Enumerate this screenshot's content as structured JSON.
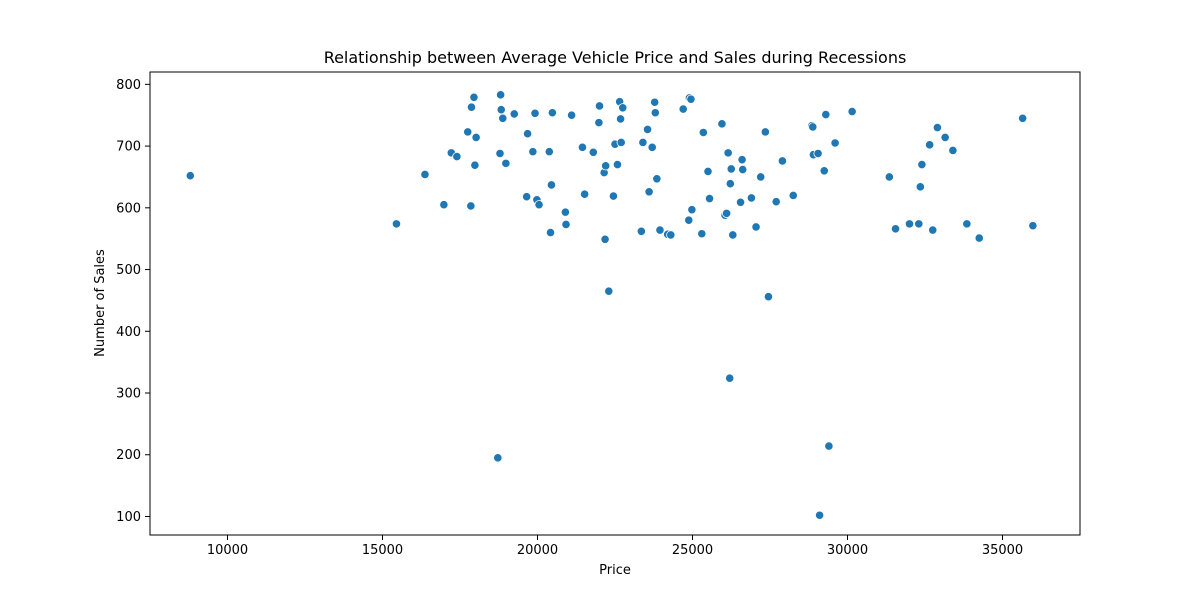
{
  "chart_data": {
    "type": "scatter",
    "title": "Relationship between Average Vehicle Price and Sales during Recessions",
    "xlabel": "Price",
    "ylabel": "Number of Sales",
    "xlim": [
      7500,
      37500
    ],
    "ylim": [
      70,
      820
    ],
    "xticks": [
      10000,
      15000,
      20000,
      25000,
      30000,
      35000
    ],
    "yticks": [
      100,
      200,
      300,
      400,
      500,
      600,
      700,
      800
    ],
    "grid": false,
    "legend": "none",
    "marker_color": "#1f77b4",
    "points": [
      [
        8800,
        652
      ],
      [
        15450,
        574
      ],
      [
        16370,
        654
      ],
      [
        16980,
        605
      ],
      [
        17220,
        689
      ],
      [
        17400,
        683
      ],
      [
        17750,
        723
      ],
      [
        17850,
        603
      ],
      [
        17870,
        763
      ],
      [
        17950,
        779
      ],
      [
        17980,
        669
      ],
      [
        18020,
        714
      ],
      [
        18720,
        195
      ],
      [
        18790,
        688
      ],
      [
        18810,
        783
      ],
      [
        18830,
        759
      ],
      [
        18880,
        745
      ],
      [
        18980,
        672
      ],
      [
        19250,
        752
      ],
      [
        19650,
        618
      ],
      [
        19680,
        720
      ],
      [
        19850,
        691
      ],
      [
        19920,
        753
      ],
      [
        19980,
        613
      ],
      [
        20050,
        605
      ],
      [
        20380,
        691
      ],
      [
        20420,
        560
      ],
      [
        20450,
        637
      ],
      [
        20480,
        754
      ],
      [
        20900,
        593
      ],
      [
        20920,
        573
      ],
      [
        21100,
        750
      ],
      [
        21450,
        698
      ],
      [
        21520,
        622
      ],
      [
        21800,
        690
      ],
      [
        21980,
        738
      ],
      [
        22000,
        765
      ],
      [
        22150,
        657
      ],
      [
        22180,
        549
      ],
      [
        22200,
        668
      ],
      [
        22300,
        465
      ],
      [
        22450,
        619
      ],
      [
        22500,
        703
      ],
      [
        22580,
        670
      ],
      [
        22650,
        772
      ],
      [
        22680,
        744
      ],
      [
        22700,
        706
      ],
      [
        22750,
        762
      ],
      [
        23350,
        562
      ],
      [
        23400,
        706
      ],
      [
        23550,
        727
      ],
      [
        23600,
        626
      ],
      [
        23700,
        698
      ],
      [
        23780,
        771
      ],
      [
        23800,
        754
      ],
      [
        23850,
        647
      ],
      [
        23950,
        564
      ],
      [
        24200,
        557
      ],
      [
        24300,
        556
      ],
      [
        24700,
        760
      ],
      [
        24880,
        580
      ],
      [
        24900,
        778
      ],
      [
        24950,
        776
      ],
      [
        24980,
        597
      ],
      [
        25300,
        558
      ],
      [
        25350,
        722
      ],
      [
        25500,
        659
      ],
      [
        25550,
        615
      ],
      [
        25950,
        736
      ],
      [
        26050,
        588
      ],
      [
        26100,
        591
      ],
      [
        26150,
        689
      ],
      [
        26200,
        324
      ],
      [
        26220,
        639
      ],
      [
        26250,
        663
      ],
      [
        26300,
        556
      ],
      [
        26550,
        609
      ],
      [
        26600,
        678
      ],
      [
        26620,
        662
      ],
      [
        26900,
        616
      ],
      [
        27050,
        569
      ],
      [
        27200,
        650
      ],
      [
        27350,
        723
      ],
      [
        27450,
        456
      ],
      [
        27700,
        610
      ],
      [
        27900,
        676
      ],
      [
        28250,
        620
      ],
      [
        28850,
        733
      ],
      [
        28880,
        731
      ],
      [
        28900,
        686
      ],
      [
        29050,
        688
      ],
      [
        29100,
        102
      ],
      [
        29250,
        660
      ],
      [
        29300,
        751
      ],
      [
        29400,
        214
      ],
      [
        29600,
        705
      ],
      [
        30150,
        756
      ],
      [
        31350,
        650
      ],
      [
        31550,
        566
      ],
      [
        32000,
        574
      ],
      [
        32300,
        574
      ],
      [
        32350,
        634
      ],
      [
        32400,
        670
      ],
      [
        32650,
        702
      ],
      [
        32750,
        564
      ],
      [
        32900,
        730
      ],
      [
        33150,
        714
      ],
      [
        33400,
        693
      ],
      [
        33850,
        574
      ],
      [
        34250,
        551
      ],
      [
        35650,
        745
      ],
      [
        35980,
        571
      ]
    ]
  }
}
